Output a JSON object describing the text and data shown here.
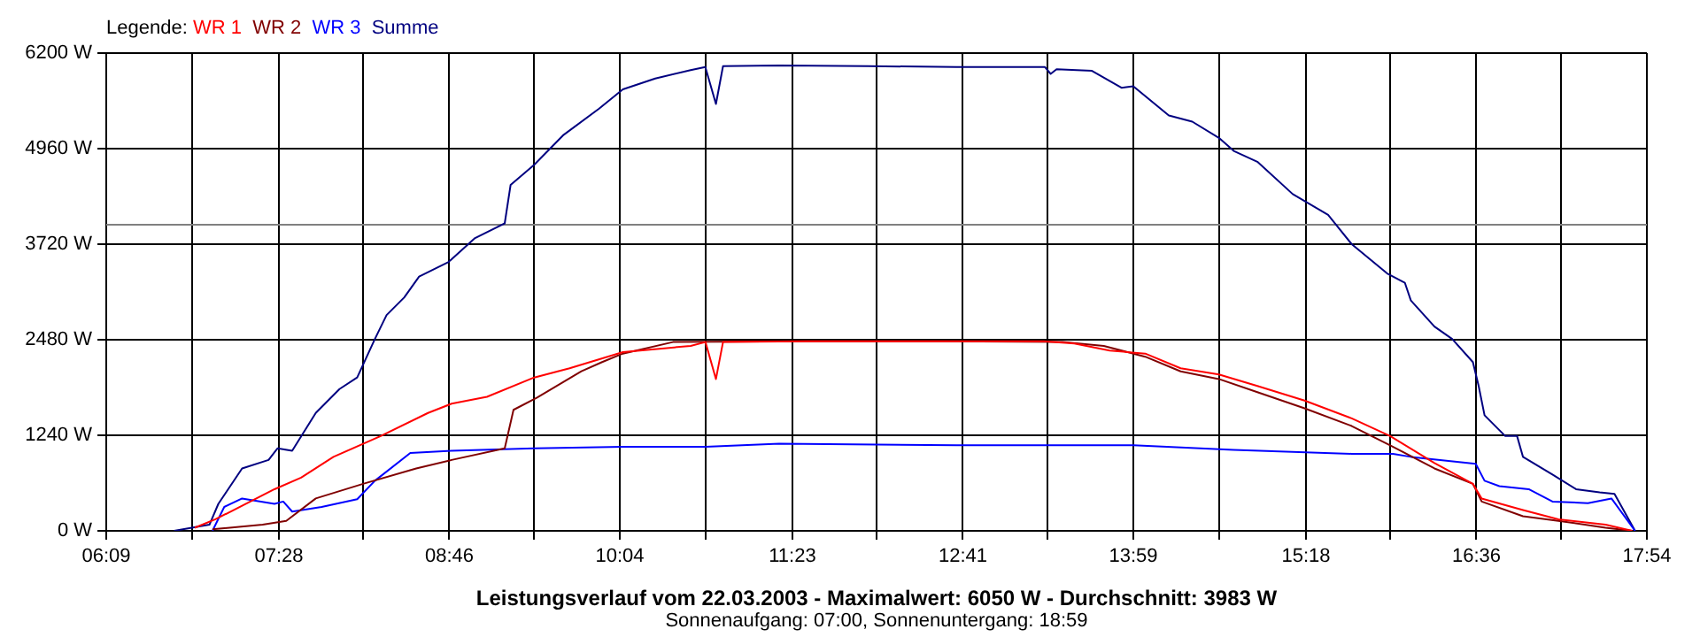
{
  "chart_data": {
    "type": "line",
    "title": "Leistungsverlauf vom 22.03.2003 - Maximalwert: 6050 W - Durchschnitt: 3983 W",
    "subtitle": "Sonnenaufgang: 07:00, Sonnenuntergang: 18:59",
    "legend_title": "Legende:",
    "legend": "top left",
    "grid": true,
    "marker": "none",
    "line_style": "solid",
    "xlim": [
      6.15,
      17.9
    ],
    "xticks": [
      {
        "value": 6.15,
        "label": "06:09"
      },
      {
        "value": 6.8028,
        "label": null
      },
      {
        "value": 7.4667,
        "label": "07:28"
      },
      {
        "value": 8.1083,
        "label": null
      },
      {
        "value": 8.7667,
        "label": "08:46"
      },
      {
        "value": 9.4139,
        "label": null
      },
      {
        "value": 10.0667,
        "label": "10:04"
      },
      {
        "value": 10.7194,
        "label": null
      },
      {
        "value": 11.3833,
        "label": "11:23"
      },
      {
        "value": 12.025,
        "label": null
      },
      {
        "value": 12.6833,
        "label": "12:41"
      },
      {
        "value": 13.3306,
        "label": null
      },
      {
        "value": 13.9833,
        "label": "13:59"
      },
      {
        "value": 14.6361,
        "label": null
      },
      {
        "value": 15.3,
        "label": "15:18"
      },
      {
        "value": 15.9417,
        "label": null
      },
      {
        "value": 16.6,
        "label": "16:36"
      },
      {
        "value": 17.2472,
        "label": null
      },
      {
        "value": 17.9,
        "label": "17:54"
      }
    ],
    "ylim": [
      0,
      6200
    ],
    "yticks": [
      {
        "value": 0,
        "label": "0 W"
      },
      {
        "value": 1240,
        "label": "1240 W"
      },
      {
        "value": 2480,
        "label": "2480 W"
      },
      {
        "value": 3720,
        "label": "3720 W"
      },
      {
        "value": 4960,
        "label": "4960 W"
      },
      {
        "value": 6200,
        "label": "6200 W"
      }
    ],
    "ref_lines": [
      {
        "axis": "y",
        "value": 3983,
        "label": null,
        "color": "#808080"
      }
    ],
    "series": [
      {
        "name": "WR 1",
        "color": "#ff0000",
        "x": [
          6.825,
          6.983,
          7.433,
          7.636,
          7.883,
          8.243,
          8.604,
          8.784,
          9.054,
          9.414,
          9.684,
          10.09,
          10.607,
          10.72,
          10.8,
          10.854,
          11.5,
          12.5,
          13.3,
          13.533,
          13.803,
          14.074,
          14.344,
          14.636,
          14.929,
          15.289,
          15.649,
          15.942,
          16.28,
          16.573,
          16.64,
          16.955,
          17.225,
          17.585,
          17.788
        ],
        "values": [
          40,
          150,
          540,
          690,
          960,
          1230,
          1530,
          1650,
          1740,
          1990,
          2110,
          2320,
          2400,
          2450,
          1970,
          2450,
          2460,
          2460,
          2460,
          2430,
          2340,
          2300,
          2110,
          2030,
          1880,
          1690,
          1460,
          1230,
          880,
          610,
          420,
          270,
          150,
          80,
          0
        ]
      },
      {
        "name": "WR 2",
        "color": "#800000",
        "x": [
          6.96,
          7.343,
          7.523,
          7.748,
          8.109,
          8.514,
          8.784,
          9.189,
          9.256,
          9.436,
          9.774,
          9.932,
          10.09,
          10.472,
          11.5,
          12.5,
          13.443,
          13.758,
          13.983,
          14.074,
          14.344,
          14.636,
          14.929,
          15.289,
          15.649,
          15.942,
          16.28,
          16.573,
          16.64,
          16.955,
          17.225,
          17.585,
          17.788
        ],
        "values": [
          20,
          80,
          130,
          420,
          610,
          810,
          920,
          1070,
          1570,
          1730,
          2070,
          2190,
          2300,
          2450,
          2460,
          2460,
          2450,
          2400,
          2300,
          2260,
          2070,
          1970,
          1800,
          1590,
          1360,
          1110,
          810,
          610,
          380,
          190,
          130,
          40,
          0
        ]
      },
      {
        "name": "WR 3",
        "color": "#0000ff",
        "x": [
          6.96,
          7.05,
          7.186,
          7.433,
          7.5,
          7.568,
          7.793,
          8.064,
          8.199,
          8.469,
          8.784,
          9.414,
          10.09,
          10.72,
          11.282,
          12.633,
          13.983,
          14.749,
          15.649,
          15.964,
          16.1,
          16.595,
          16.662,
          16.775,
          16.999,
          17.18,
          17.45,
          17.63,
          17.81
        ],
        "values": [
          0,
          310,
          420,
          350,
          380,
          250,
          310,
          410,
          650,
          1010,
          1040,
          1070,
          1090,
          1090,
          1130,
          1110,
          1110,
          1050,
          1000,
          1000,
          960,
          870,
          650,
          580,
          540,
          380,
          360,
          420,
          0
        ]
      },
      {
        "name": "Summe",
        "color": "#000080",
        "x": [
          6.667,
          6.937,
          7.005,
          7.186,
          7.388,
          7.456,
          7.568,
          7.748,
          7.929,
          8.064,
          8.199,
          8.288,
          8.423,
          8.536,
          8.761,
          8.963,
          9.189,
          9.234,
          9.414,
          9.639,
          9.909,
          10.09,
          10.337,
          10.607,
          10.719,
          10.8,
          10.854,
          11.282,
          11.958,
          12.633,
          13.308,
          13.353,
          13.398,
          13.668,
          13.893,
          13.983,
          14.254,
          14.433,
          14.636,
          14.749,
          14.929,
          15.199,
          15.469,
          15.649,
          15.919,
          16.054,
          16.1,
          16.28,
          16.415,
          16.573,
          16.617,
          16.662,
          16.82,
          16.91,
          16.955,
          17.18,
          17.36,
          17.54,
          17.653,
          17.81
        ],
        "values": [
          0,
          80,
          350,
          810,
          920,
          1070,
          1040,
          1530,
          1840,
          1990,
          2490,
          2800,
          3030,
          3300,
          3490,
          3800,
          3990,
          4490,
          4750,
          5140,
          5480,
          5730,
          5870,
          5980,
          6020,
          5540,
          6030,
          6040,
          6030,
          6020,
          6020,
          5930,
          5990,
          5970,
          5750,
          5770,
          5390,
          5310,
          5100,
          4930,
          4790,
          4370,
          4100,
          3720,
          3340,
          3220,
          2990,
          2650,
          2490,
          2190,
          1880,
          1500,
          1230,
          1230,
          960,
          730,
          540,
          500,
          480,
          0
        ]
      }
    ]
  }
}
